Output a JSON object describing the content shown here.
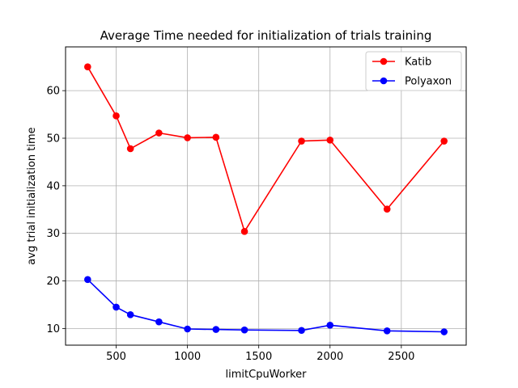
{
  "chart_data": {
    "type": "line",
    "title": "Average Time needed for initialization of  trials training",
    "xlabel": "limitCpuWorker",
    "ylabel": "avg trial initialization time",
    "xlim": [
      145,
      2955
    ],
    "ylim": [
      6.5,
      69.2
    ],
    "xticks": [
      500,
      1000,
      1500,
      2000,
      2500
    ],
    "yticks": [
      10,
      20,
      30,
      40,
      50,
      60
    ],
    "grid": true,
    "legend_position": "top-right",
    "series": [
      {
        "name": "Katib",
        "color": "#ff0000",
        "x": [
          300,
          500,
          600,
          800,
          1000,
          1200,
          1400,
          1800,
          2000,
          2400,
          2800
        ],
        "y": [
          65.0,
          54.7,
          47.8,
          51.1,
          50.1,
          50.2,
          30.4,
          49.4,
          49.6,
          35.1,
          49.4
        ]
      },
      {
        "name": "Polyaxon",
        "color": "#0000ff",
        "x": [
          300,
          500,
          600,
          800,
          1000,
          1200,
          1400,
          1800,
          2000,
          2400,
          2800
        ],
        "y": [
          20.3,
          14.5,
          12.9,
          11.4,
          9.9,
          9.8,
          9.7,
          9.6,
          10.7,
          9.5,
          9.3
        ]
      }
    ]
  }
}
